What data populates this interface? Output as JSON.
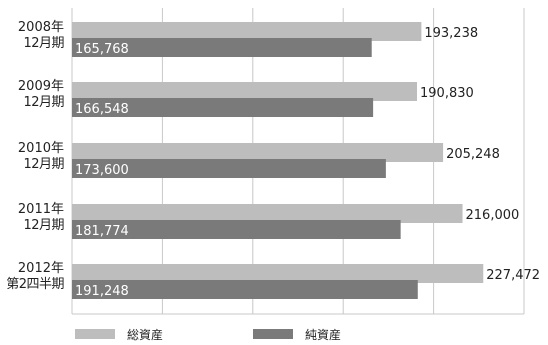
{
  "chart_data": {
    "type": "bar",
    "orientation": "horizontal",
    "categories": [
      [
        "2008年",
        "12月期"
      ],
      [
        "2009年",
        "12月期"
      ],
      [
        "2010年",
        "12月期"
      ],
      [
        "2011年",
        "12月期"
      ],
      [
        "2012年",
        "第2四半期"
      ]
    ],
    "series": [
      {
        "name": "総資産",
        "color": "#bdbdbd",
        "values": [
          193238,
          190830,
          205248,
          216000,
          227472
        ],
        "labels": [
          "193,238",
          "190,830",
          "205,248",
          "216,000",
          "227,472"
        ]
      },
      {
        "name": "純資産",
        "color": "#7a7a7a",
        "values": [
          165768,
          166548,
          173600,
          181774,
          191248
        ],
        "labels": [
          "165,768",
          "166,548",
          "173,600",
          "181,774",
          "191,248"
        ]
      }
    ],
    "xlim": [
      0,
      250000
    ],
    "grid": true,
    "legend_position": "bottom"
  }
}
